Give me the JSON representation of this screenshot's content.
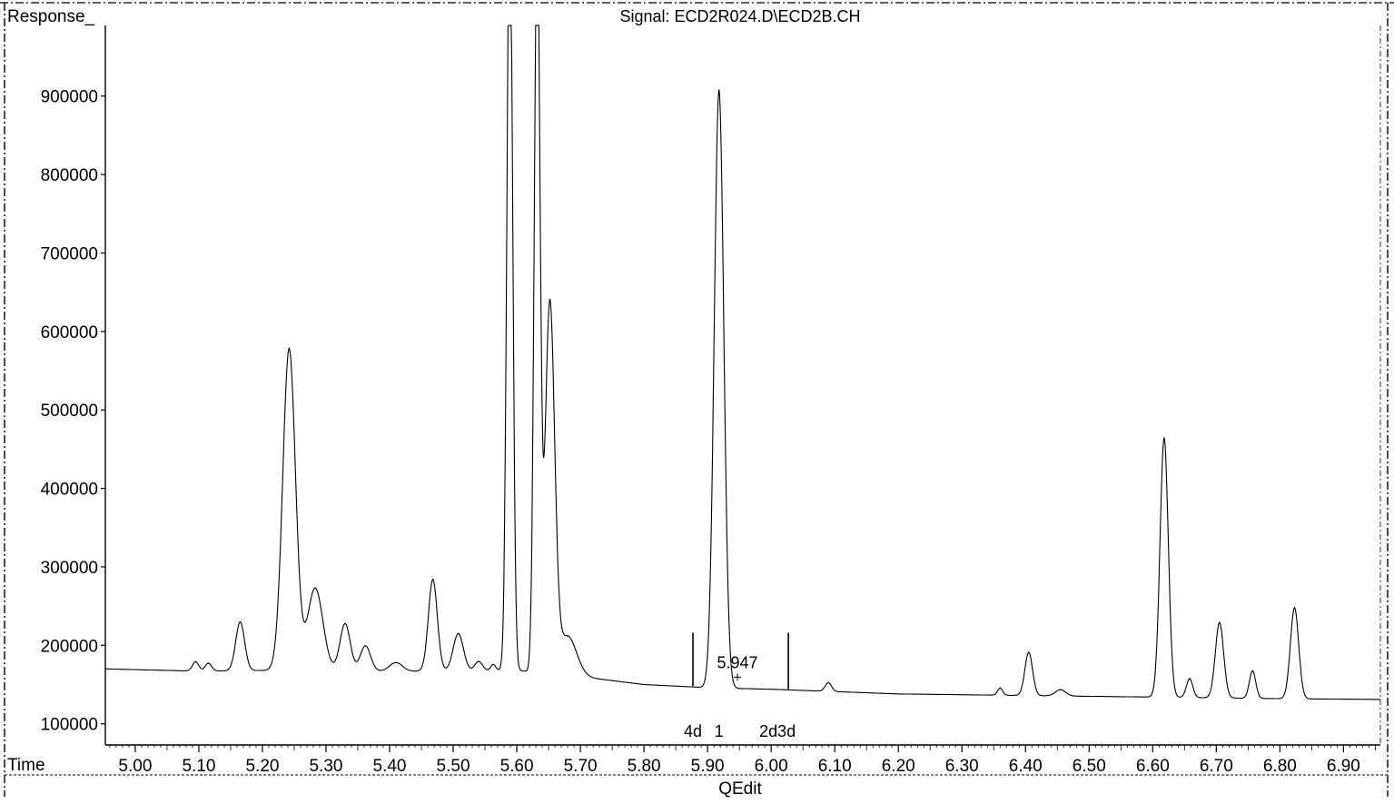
{
  "chart_data": {
    "type": "line",
    "title": "Signal: ECD2R024.D\\ECD2B.CH",
    "ylabel": "Response_",
    "xlabel": "Time",
    "footer": "QEdit",
    "xlim": [
      4.953,
      6.958
    ],
    "ylim": [
      73000,
      990000
    ],
    "x_ticks": [
      5.0,
      5.1,
      5.2,
      5.3,
      5.4,
      5.5,
      5.6,
      5.7,
      5.8,
      5.9,
      6.0,
      6.1,
      6.2,
      6.3,
      6.4,
      6.5,
      6.6,
      6.7,
      6.8,
      6.9
    ],
    "x_tick_labels": [
      "5.00",
      "5.10",
      "5.20",
      "5.30",
      "5.40",
      "5.50",
      "5.60",
      "5.70",
      "5.80",
      "5.90",
      "6.00",
      "6.10",
      "6.20",
      "6.30",
      "6.40",
      "6.50",
      "6.60",
      "6.70",
      "6.80",
      "6.90"
    ],
    "y_ticks": [
      100000,
      200000,
      300000,
      400000,
      500000,
      600000,
      700000,
      800000,
      900000
    ],
    "y_tick_labels": [
      "100000",
      "200000",
      "300000",
      "400000",
      "500000",
      "600000",
      "700000",
      "800000",
      "900000"
    ],
    "baseline": [
      [
        4.953,
        170000
      ],
      [
        5.0,
        169000
      ],
      [
        5.1,
        167000
      ],
      [
        5.2,
        168000
      ],
      [
        5.3,
        168000
      ],
      [
        5.4,
        167000
      ],
      [
        5.5,
        167000
      ],
      [
        5.6,
        168000
      ],
      [
        5.7,
        160000
      ],
      [
        5.8,
        150000
      ],
      [
        5.9,
        146000
      ],
      [
        6.0,
        144000
      ],
      [
        6.1,
        141000
      ],
      [
        6.2,
        138000
      ],
      [
        6.3,
        137000
      ],
      [
        6.4,
        136000
      ],
      [
        6.5,
        135000
      ],
      [
        6.6,
        134000
      ],
      [
        6.7,
        133000
      ],
      [
        6.8,
        132000
      ],
      [
        6.958,
        131000
      ]
    ],
    "peaks": [
      {
        "rt": 5.095,
        "height": 12000,
        "width": 0.005
      },
      {
        "rt": 5.115,
        "height": 10000,
        "width": 0.005
      },
      {
        "rt": 5.165,
        "height": 62000,
        "width": 0.007
      },
      {
        "rt": 5.242,
        "height": 410000,
        "width": 0.01
      },
      {
        "rt": 5.283,
        "height": 105000,
        "width": 0.012
      },
      {
        "rt": 5.33,
        "height": 60000,
        "width": 0.008
      },
      {
        "rt": 5.362,
        "height": 32000,
        "width": 0.008
      },
      {
        "rt": 5.41,
        "height": 11000,
        "width": 0.01
      },
      {
        "rt": 5.468,
        "height": 117000,
        "width": 0.007
      },
      {
        "rt": 5.508,
        "height": 48000,
        "width": 0.008
      },
      {
        "rt": 5.54,
        "height": 12000,
        "width": 0.006
      },
      {
        "rt": 5.563,
        "height": 8000,
        "width": 0.004
      },
      {
        "rt": 5.589,
        "height": 990000,
        "width": 0.0045
      },
      {
        "rt": 5.632,
        "height": 950000,
        "width": 0.0045
      },
      {
        "rt": 5.652,
        "height": 470000,
        "width": 0.0075
      },
      {
        "rt": 5.68,
        "height": 50000,
        "width": 0.014
      },
      {
        "rt": 5.918,
        "height": 762000,
        "width": 0.0075
      },
      {
        "rt": 6.09,
        "height": 11000,
        "width": 0.005
      },
      {
        "rt": 6.36,
        "height": 9000,
        "width": 0.004
      },
      {
        "rt": 6.405,
        "height": 55000,
        "width": 0.006
      },
      {
        "rt": 6.455,
        "height": 8000,
        "width": 0.008
      },
      {
        "rt": 6.618,
        "height": 330000,
        "width": 0.0065
      },
      {
        "rt": 6.658,
        "height": 24000,
        "width": 0.005
      },
      {
        "rt": 6.705,
        "height": 96000,
        "width": 0.0065
      },
      {
        "rt": 6.757,
        "height": 35000,
        "width": 0.005
      },
      {
        "rt": 6.823,
        "height": 116000,
        "width": 0.0065
      }
    ],
    "integration_markers": [
      {
        "x": 5.877,
        "y_from": 148000,
        "y_to": 216000
      },
      {
        "x": 6.027,
        "y_from": 144000,
        "y_to": 216000
      }
    ],
    "annotations": [
      {
        "text": "5.947",
        "x": 5.947,
        "y": 171000
      },
      {
        "text": "4d",
        "x": 5.877
      },
      {
        "text": "1",
        "x": 5.918
      },
      {
        "text": "2d3d",
        "x": 6.01
      }
    ]
  }
}
